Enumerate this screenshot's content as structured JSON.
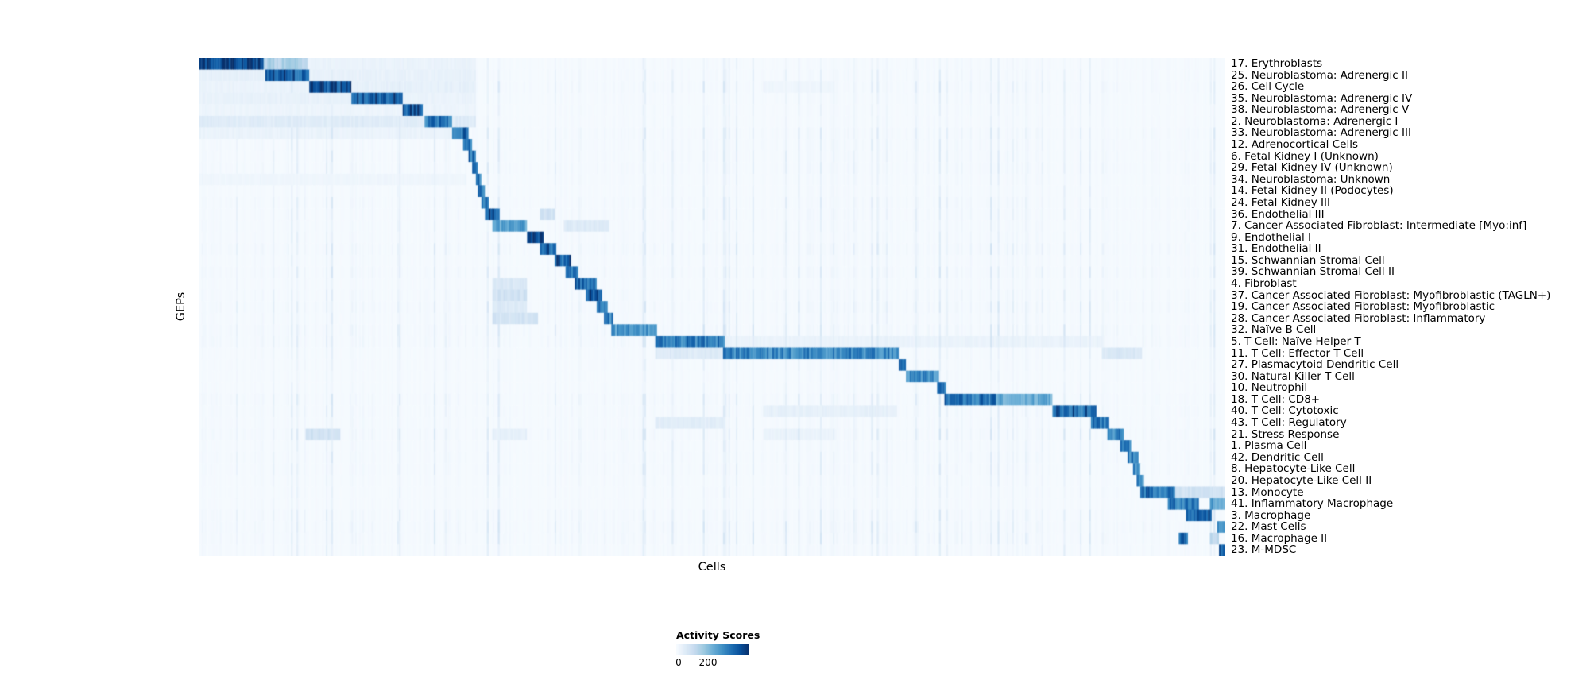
{
  "figure": {
    "background": "#ffffff"
  },
  "chart_data": {
    "type": "heatmap",
    "title": "",
    "xlabel": "Cells",
    "ylabel": "GEPs",
    "colorbar": {
      "label": "Activity Scores",
      "ticks": [
        "0",
        "200"
      ],
      "tick_values": [
        0,
        200
      ],
      "colormap": "Blues",
      "colormap_stops": [
        "#f7fbff",
        "#deebf7",
        "#c6dbef",
        "#9ecae1",
        "#6baed6",
        "#4292c6",
        "#2171b5",
        "#08519c",
        "#08306b"
      ]
    },
    "vmax_estimate": 460,
    "segments_format": "Each segment is [x_start_fraction, x_end_fraction, approx_activity_score] along the ordered Cells axis; the dominant diagonal block marks the cells assigned to that GEP.",
    "rows": [
      {
        "label": "17. Erythroblasts",
        "segments": [
          [
            0.0,
            0.062,
            460
          ],
          [
            0.062,
            0.105,
            150
          ],
          [
            0.105,
            0.27,
            30
          ]
        ]
      },
      {
        "label": "25. Neuroblastoma: Adrenergic II",
        "segments": [
          [
            0.065,
            0.107,
            400
          ],
          [
            0.0,
            0.065,
            40
          ],
          [
            0.107,
            0.27,
            35
          ]
        ]
      },
      {
        "label": "26. Cell Cycle",
        "segments": [
          [
            0.108,
            0.148,
            420
          ],
          [
            0.0,
            0.108,
            30
          ],
          [
            0.148,
            0.27,
            40
          ],
          [
            0.55,
            0.62,
            20
          ]
        ]
      },
      {
        "label": "35. Neuroblastoma: Adrenergic IV",
        "segments": [
          [
            0.148,
            0.198,
            410
          ],
          [
            0.0,
            0.148,
            35
          ],
          [
            0.198,
            0.27,
            30
          ]
        ]
      },
      {
        "label": "38. Neuroblastoma: Adrenergic V",
        "segments": [
          [
            0.198,
            0.218,
            420
          ],
          [
            0.0,
            0.198,
            25
          ],
          [
            0.218,
            0.27,
            25
          ]
        ]
      },
      {
        "label": "2. Neuroblastoma: Adrenergic I",
        "segments": [
          [
            0.22,
            0.247,
            340
          ],
          [
            0.0,
            0.22,
            55
          ],
          [
            0.247,
            0.27,
            60
          ]
        ]
      },
      {
        "label": "33. Neuroblastoma: Adrenergic III",
        "segments": [
          [
            0.247,
            0.262,
            370
          ],
          [
            0.0,
            0.247,
            30
          ]
        ]
      },
      {
        "label": "12. Adrenocortical Cells",
        "segments": [
          [
            0.258,
            0.266,
            330
          ]
        ]
      },
      {
        "label": "6. Fetal Kidney I (Unknown)",
        "segments": [
          [
            0.262,
            0.269,
            350
          ]
        ]
      },
      {
        "label": "29. Fetal Kidney IV (Unknown)",
        "segments": [
          [
            0.266,
            0.272,
            330
          ]
        ]
      },
      {
        "label": "34. Neuroblastoma: Unknown",
        "segments": [
          [
            0.269,
            0.275,
            330
          ],
          [
            0.0,
            0.26,
            20
          ]
        ]
      },
      {
        "label": "14. Fetal Kidney II (Podocytes)",
        "segments": [
          [
            0.272,
            0.278,
            350
          ]
        ]
      },
      {
        "label": "24. Fetal Kidney III",
        "segments": [
          [
            0.275,
            0.282,
            330
          ]
        ]
      },
      {
        "label": "36. Endothelial III",
        "segments": [
          [
            0.278,
            0.293,
            390
          ],
          [
            0.332,
            0.347,
            90
          ]
        ]
      },
      {
        "label": "7. Cancer Associated Fibroblast: Intermediate [Myo:inf]",
        "segments": [
          [
            0.286,
            0.319,
            260
          ],
          [
            0.355,
            0.4,
            60
          ]
        ]
      },
      {
        "label": "9. Endothelial I",
        "segments": [
          [
            0.319,
            0.336,
            420
          ]
        ]
      },
      {
        "label": "31. Endothelial II",
        "segments": [
          [
            0.333,
            0.348,
            380
          ]
        ]
      },
      {
        "label": "15. Schwannian Stromal Cell",
        "segments": [
          [
            0.346,
            0.363,
            390
          ]
        ]
      },
      {
        "label": "39. Schwannian Stromal Cell II",
        "segments": [
          [
            0.358,
            0.369,
            330
          ]
        ]
      },
      {
        "label": "4. Fibroblast",
        "segments": [
          [
            0.366,
            0.387,
            370
          ],
          [
            0.286,
            0.319,
            70
          ]
        ]
      },
      {
        "label": "37. Cancer Associated Fibroblast: Myofibroblastic (TAGLN+)",
        "segments": [
          [
            0.377,
            0.393,
            390
          ],
          [
            0.286,
            0.319,
            95
          ]
        ]
      },
      {
        "label": "19. Cancer Associated Fibroblast: Myofibroblastic",
        "segments": [
          [
            0.387,
            0.399,
            370
          ],
          [
            0.286,
            0.319,
            65
          ]
        ]
      },
      {
        "label": "28. Cancer Associated Fibroblast: Inflammatory",
        "segments": [
          [
            0.394,
            0.404,
            330
          ],
          [
            0.286,
            0.33,
            85
          ]
        ]
      },
      {
        "label": "32. Naïve B Cell",
        "segments": [
          [
            0.402,
            0.447,
            280
          ]
        ]
      },
      {
        "label": "5. T Cell: Naïve Helper T",
        "segments": [
          [
            0.445,
            0.512,
            330
          ],
          [
            0.512,
            0.88,
            30
          ]
        ]
      },
      {
        "label": "11. T Cell: Effector T Cell",
        "segments": [
          [
            0.51,
            0.682,
            310
          ],
          [
            0.445,
            0.51,
            60
          ],
          [
            0.88,
            0.92,
            70
          ]
        ]
      },
      {
        "label": "27. Plasmacytoid Dendritic Cell",
        "segments": [
          [
            0.682,
            0.69,
            370
          ]
        ]
      },
      {
        "label": "30. Natural Killer T Cell",
        "segments": [
          [
            0.69,
            0.722,
            300
          ]
        ]
      },
      {
        "label": "10. Neutrophil",
        "segments": [
          [
            0.72,
            0.728,
            330
          ]
        ]
      },
      {
        "label": "18. T Cell: CD8+",
        "segments": [
          [
            0.727,
            0.776,
            350
          ],
          [
            0.776,
            0.832,
            240
          ]
        ]
      },
      {
        "label": "40. T Cell: Cytotoxic",
        "segments": [
          [
            0.832,
            0.875,
            380
          ],
          [
            0.55,
            0.68,
            40
          ]
        ]
      },
      {
        "label": "43. T Cell: Regulatory",
        "segments": [
          [
            0.87,
            0.888,
            330
          ],
          [
            0.445,
            0.51,
            50
          ]
        ]
      },
      {
        "label": "21. Stress Response",
        "segments": [
          [
            0.885,
            0.901,
            310
          ],
          [
            0.103,
            0.138,
            90
          ],
          [
            0.286,
            0.319,
            40
          ],
          [
            0.55,
            0.62,
            30
          ]
        ]
      },
      {
        "label": "1. Plasma Cell",
        "segments": [
          [
            0.898,
            0.909,
            350
          ]
        ]
      },
      {
        "label": "42. Dendritic Cell",
        "segments": [
          [
            0.905,
            0.916,
            330
          ]
        ]
      },
      {
        "label": "8. Hepatocyte-Like Cell",
        "segments": [
          [
            0.91,
            0.918,
            310
          ]
        ]
      },
      {
        "label": "20. Hepatocyte-Like Cell II",
        "segments": [
          [
            0.914,
            0.922,
            310
          ]
        ]
      },
      {
        "label": "13. Monocyte",
        "segments": [
          [
            0.918,
            0.952,
            360
          ],
          [
            0.952,
            1.0,
            90
          ]
        ]
      },
      {
        "label": "41. Inflammatory Macrophage",
        "segments": [
          [
            0.944,
            0.975,
            340
          ],
          [
            0.985,
            1.0,
            260
          ]
        ]
      },
      {
        "label": "3. Macrophage",
        "segments": [
          [
            0.962,
            0.988,
            380
          ]
        ]
      },
      {
        "label": "22. Mast Cells",
        "segments": [
          [
            0.993,
            1.0,
            330
          ]
        ]
      },
      {
        "label": "16. Macrophage II",
        "segments": [
          [
            0.955,
            0.964,
            350
          ],
          [
            0.985,
            0.994,
            130
          ]
        ]
      },
      {
        "label": "23. M-MDSC",
        "segments": [
          [
            0.995,
            1.0,
            400
          ]
        ]
      }
    ]
  }
}
